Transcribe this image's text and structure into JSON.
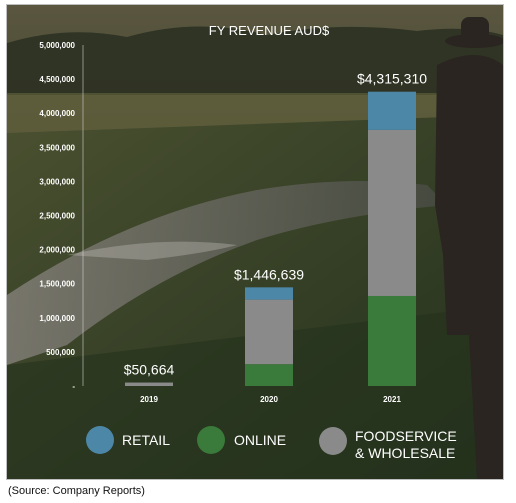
{
  "source_note": "(Source: Company Reports)",
  "colors": {
    "retail": "#4d87a8",
    "online": "#3a7a3a",
    "foodservice": "#8a8a8a",
    "text": "#ffffff"
  },
  "chart_data": {
    "type": "bar",
    "stacked": true,
    "title": "FY REVENUE AUD$",
    "categories": [
      "2019",
      "2020",
      "2021"
    ],
    "totals_labels": [
      "$50,664",
      "$1,446,639",
      "$4,315,310"
    ],
    "totals": [
      50664,
      1446639,
      4315310
    ],
    "series": [
      {
        "name": "ONLINE",
        "color": "#3a7a3a",
        "values": [
          0,
          320000,
          1320000
        ]
      },
      {
        "name": "FOODSERVICE & WHOLESALE",
        "color": "#8a8a8a",
        "values": [
          50664,
          946639,
          2435310
        ]
      },
      {
        "name": "RETAIL",
        "color": "#4d87a8",
        "values": [
          0,
          180000,
          560000
        ]
      }
    ],
    "legend_order": [
      "RETAIL",
      "ONLINE",
      "FOODSERVICE & WHOLESALE"
    ],
    "ylim": [
      0,
      5000000
    ],
    "yticks": [
      "-",
      "500,000",
      "1,000,000",
      "1,500,000",
      "2,000,000",
      "2,500,000",
      "3,000,000",
      "3,500,000",
      "4,000,000",
      "4,500,000",
      "5,000,000"
    ],
    "grid": false,
    "legend_position": "bottom"
  }
}
